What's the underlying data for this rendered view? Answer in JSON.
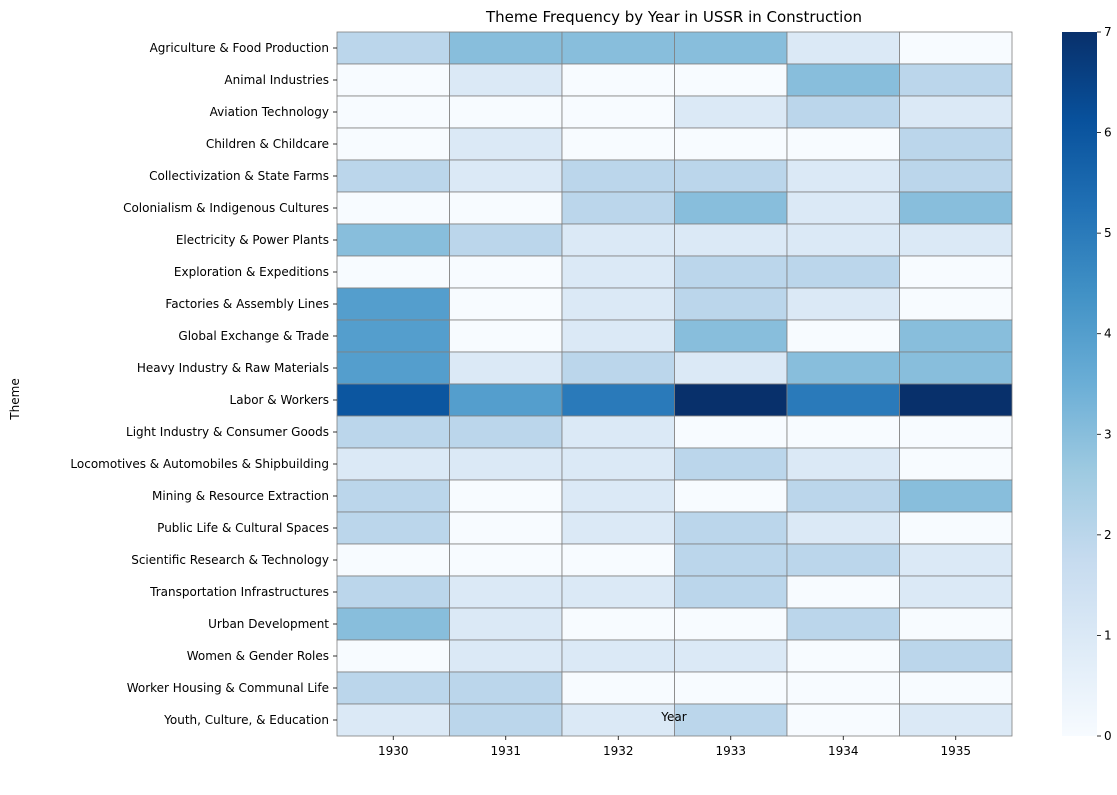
{
  "chart_data": {
    "type": "heatmap",
    "title": "Theme Frequency by Year in USSR in Construction",
    "xlabel": "Year",
    "ylabel": "Theme",
    "x": [
      "1930",
      "1931",
      "1932",
      "1933",
      "1934",
      "1935"
    ],
    "y": [
      "Agriculture & Food Production",
      "Animal Industries",
      "Aviation Technology",
      "Children & Childcare",
      "Collectivization & State Farms",
      "Colonialism & Indigenous Cultures",
      "Electricity & Power Plants",
      "Exploration & Expeditions",
      "Factories & Assembly Lines",
      "Global Exchange & Trade",
      "Heavy Industry & Raw Materials",
      "Labor & Workers",
      "Light Industry & Consumer Goods",
      "Locomotives & Automobiles & Shipbuilding",
      "Mining & Resource Extraction",
      "Public Life & Cultural Spaces",
      "Scientific Research & Technology",
      "Transportation Infrastructures",
      "Urban Development",
      "Women & Gender Roles",
      "Worker Housing & Communal Life",
      "Youth, Culture, & Education"
    ],
    "values": [
      [
        2,
        3,
        3,
        3,
        1,
        0
      ],
      [
        0,
        1,
        0,
        0,
        3,
        2
      ],
      [
        0,
        0,
        0,
        1,
        2,
        1
      ],
      [
        0,
        1,
        0,
        0,
        0,
        2
      ],
      [
        2,
        1,
        2,
        2,
        1,
        2
      ],
      [
        0,
        0,
        2,
        3,
        1,
        3
      ],
      [
        3,
        2,
        1,
        1,
        1,
        1
      ],
      [
        0,
        0,
        1,
        2,
        2,
        0
      ],
      [
        4,
        0,
        1,
        2,
        1,
        0
      ],
      [
        4,
        0,
        1,
        3,
        0,
        3
      ],
      [
        4,
        1,
        2,
        1,
        3,
        3
      ],
      [
        6,
        4,
        5,
        7,
        5,
        7
      ],
      [
        2,
        2,
        1,
        0,
        0,
        0
      ],
      [
        1,
        1,
        1,
        2,
        1,
        0
      ],
      [
        2,
        0,
        1,
        0,
        2,
        3
      ],
      [
        2,
        0,
        1,
        2,
        1,
        0
      ],
      [
        0,
        0,
        0,
        2,
        2,
        1
      ],
      [
        2,
        1,
        1,
        2,
        0,
        1
      ],
      [
        3,
        1,
        0,
        0,
        2,
        0
      ],
      [
        0,
        1,
        1,
        1,
        0,
        2
      ],
      [
        2,
        2,
        0,
        0,
        0,
        0
      ],
      [
        1,
        2,
        1,
        2,
        0,
        1
      ]
    ],
    "colorbar": {
      "range": [
        0,
        7
      ],
      "ticks": [
        "0",
        "1",
        "2",
        "3",
        "4",
        "5",
        "6",
        "7"
      ],
      "colormap": "Blues"
    },
    "grid_color": "#808080"
  }
}
